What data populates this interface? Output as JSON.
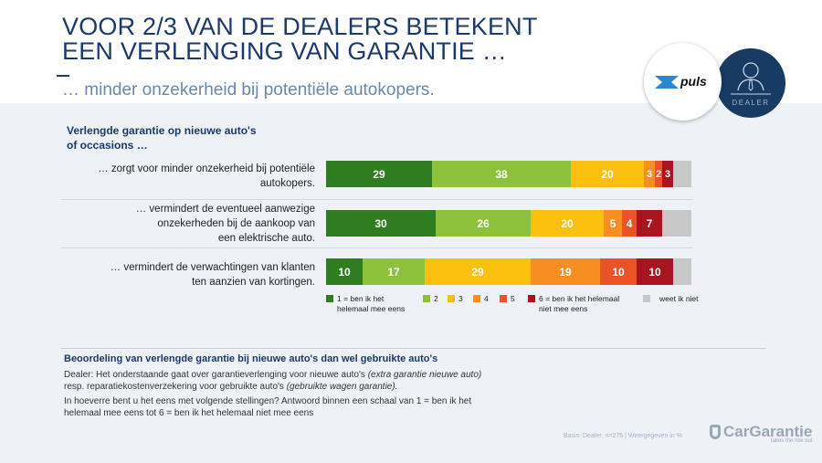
{
  "header": {
    "title_line1": "VOOR 2/3 VAN DE DEALERS BETEKENT",
    "title_line2": "EEN VERLENGING VAN GARANTIE …",
    "subtitle": "… minder onzekerheid bij potentiële autokopers.",
    "logo_xpuls": "puls",
    "logo_dealer": "DEALER"
  },
  "chart_data": {
    "type": "bar",
    "orientation": "horizontal-stacked-100",
    "title": "Verlengde garantie op nieuwe auto's of occasions …",
    "categories": [
      "… zorgt voor minder onzekerheid bij potentiële autokopers.",
      "… vermindert de eventueel aanwezige onzekerheden bij de aankoop van een elektrische auto.",
      "… vermindert de verwachtingen van klanten ten aanzien van kortingen."
    ],
    "category_lines": [
      [
        "… zorgt voor minder onzekerheid bij potentiële",
        "autokopers."
      ],
      [
        "… vermindert de eventueel aanwezige",
        "onzekerheden bij de aankoop van",
        "een elektrische auto."
      ],
      [
        "… vermindert de verwachtingen van klanten",
        "ten aanzien van kortingen."
      ]
    ],
    "series": [
      {
        "name": "1 = ben ik het helemaal mee eens",
        "color": "#2f7d20",
        "values": [
          29,
          30,
          10
        ]
      },
      {
        "name": "2",
        "color": "#8dc13c",
        "values": [
          38,
          26,
          17
        ]
      },
      {
        "name": "3",
        "color": "#fbbf0e",
        "values": [
          20,
          20,
          29
        ]
      },
      {
        "name": "4",
        "color": "#f68e21",
        "values": [
          3,
          5,
          19
        ]
      },
      {
        "name": "5",
        "color": "#ec5227",
        "values": [
          2,
          4,
          10
        ]
      },
      {
        "name": "6 = ben ik het helemaal niet mee eens",
        "color": "#a8141f",
        "values": [
          3,
          7,
          10
        ]
      },
      {
        "name": "weet ik niet",
        "color": "#c8c8c8",
        "values": [
          5,
          8,
          5
        ],
        "labels_shown": false
      }
    ],
    "legend_lines": [
      [
        "1 = ben ik het",
        "helemaal mee eens"
      ],
      [
        "2"
      ],
      [
        "3"
      ],
      [
        "4"
      ],
      [
        "5"
      ],
      [
        "6 = ben ik het helemaal",
        "niet mee eens"
      ],
      [
        "weet ik niet"
      ]
    ],
    "legend_position": "bottom",
    "unit": "%"
  },
  "footer": {
    "title": "Beoordeling van verlengde garantie bij nieuwe auto's dan wel gebruikte auto's",
    "p1_a": "Dealer: Het onderstaande gaat over garantieverlenging voor nieuwe auto's ",
    "p1_b": "(extra garantie nieuwe auto)",
    "p1_c": " resp. reparatiekostenverzekering voor gebruikte auto's ",
    "p1_d": "(gebruikte wagen garantie).",
    "p2": "In hoeverre bent u het eens met volgende stellingen? Antwoord binnen een schaal van 1 = ben ik het helemaal mee eens tot 6 = ben ik het helemaal niet mee eens",
    "basis": "Basis: Dealer: n=275 | Weergegeven in %",
    "brand": "CarGarantie",
    "brand_tagline": "takes the risk out"
  }
}
